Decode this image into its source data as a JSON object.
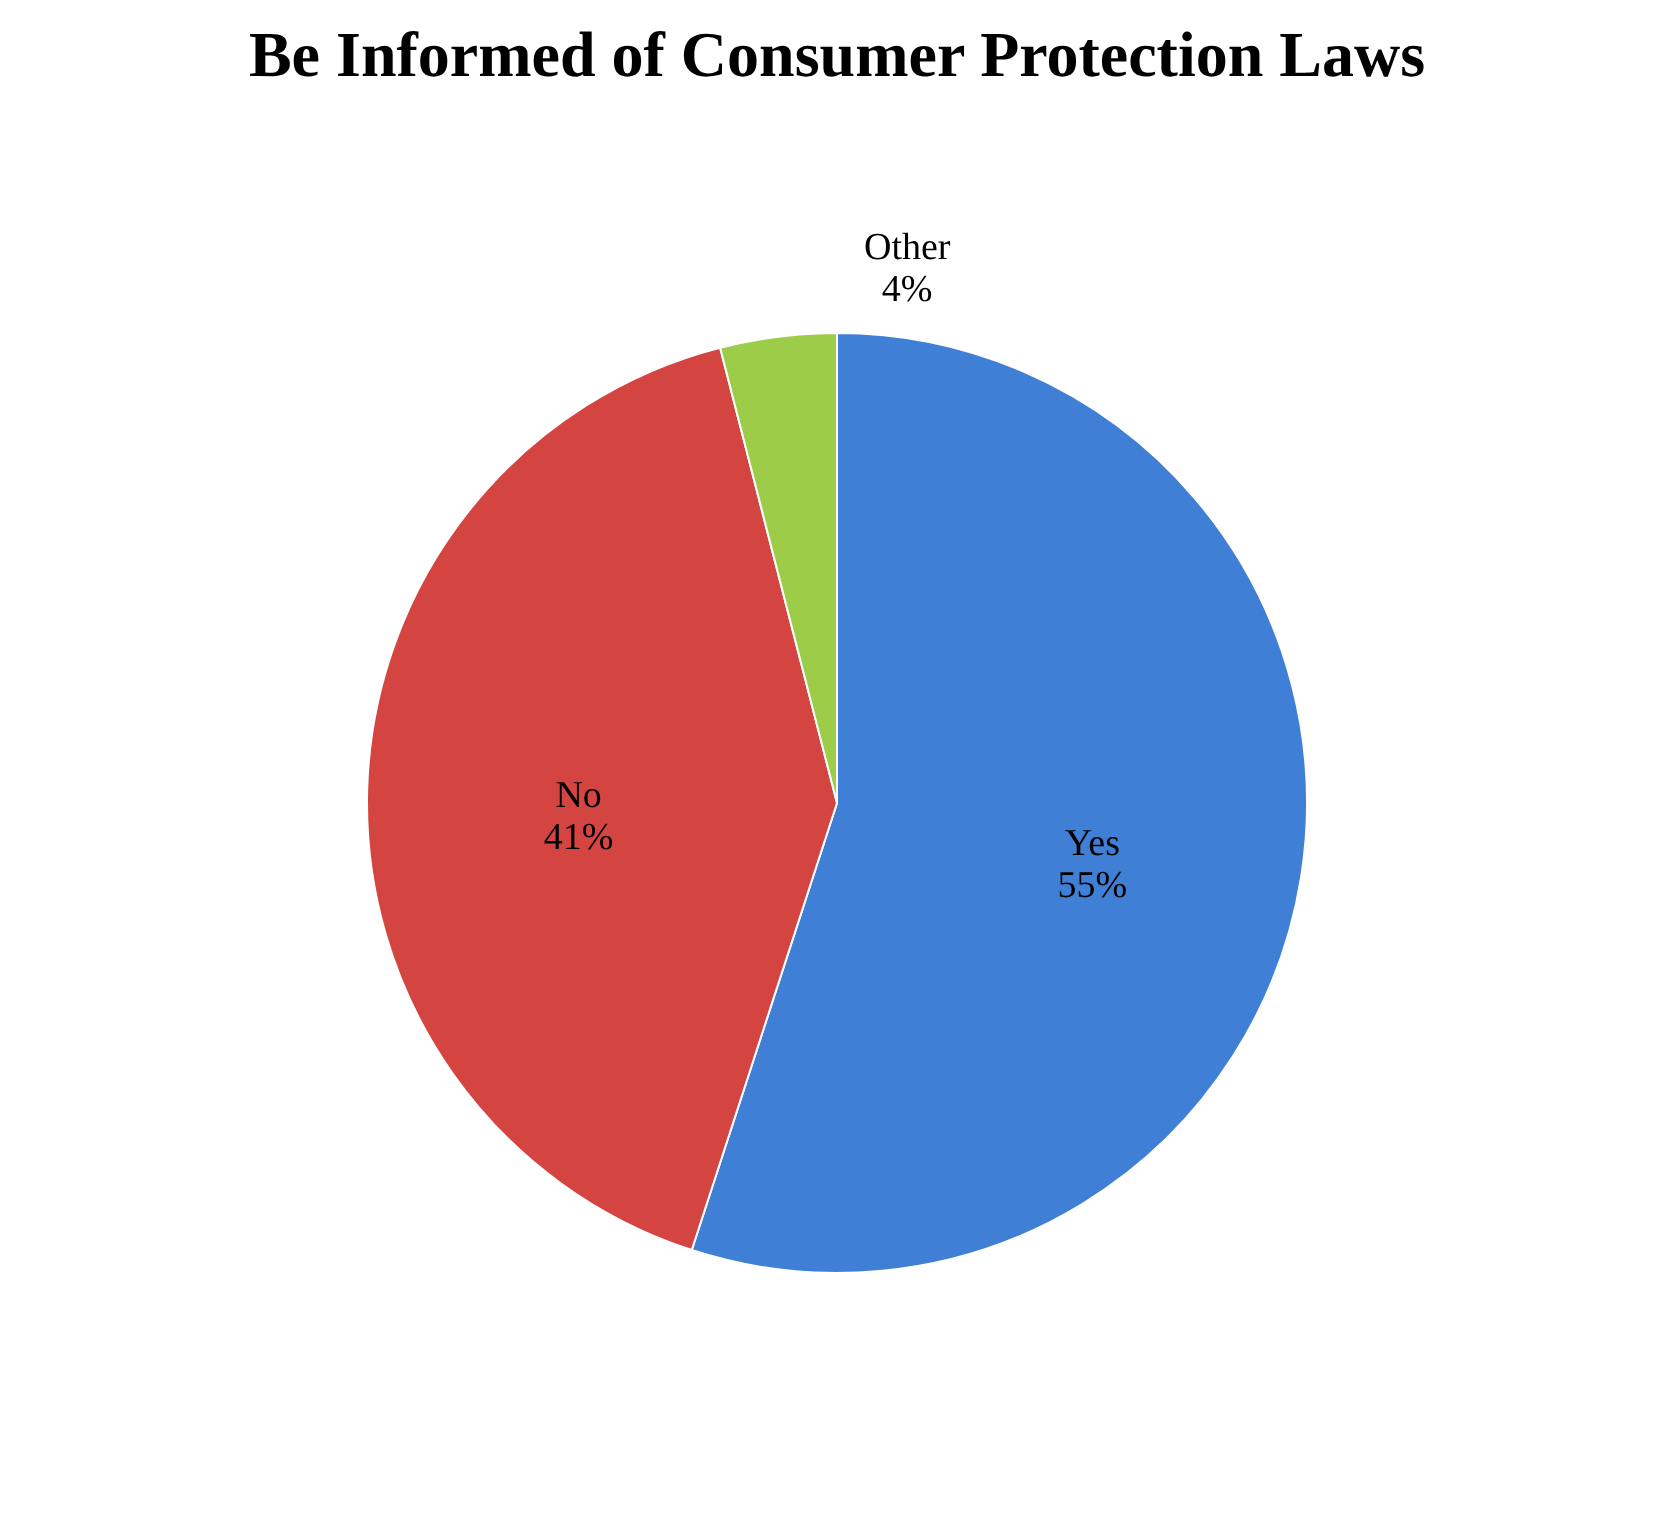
{
  "chart_data": {
    "type": "pie",
    "title": "Be Informed of Consumer Protection Laws",
    "categories": [
      "Yes",
      "No",
      "Other"
    ],
    "values": [
      55,
      41,
      4
    ],
    "value_labels": [
      "55%",
      "41%",
      "4%"
    ],
    "colors": [
      "#3f7fd6",
      "#d44440",
      "#9ccc48"
    ],
    "legend": false
  }
}
